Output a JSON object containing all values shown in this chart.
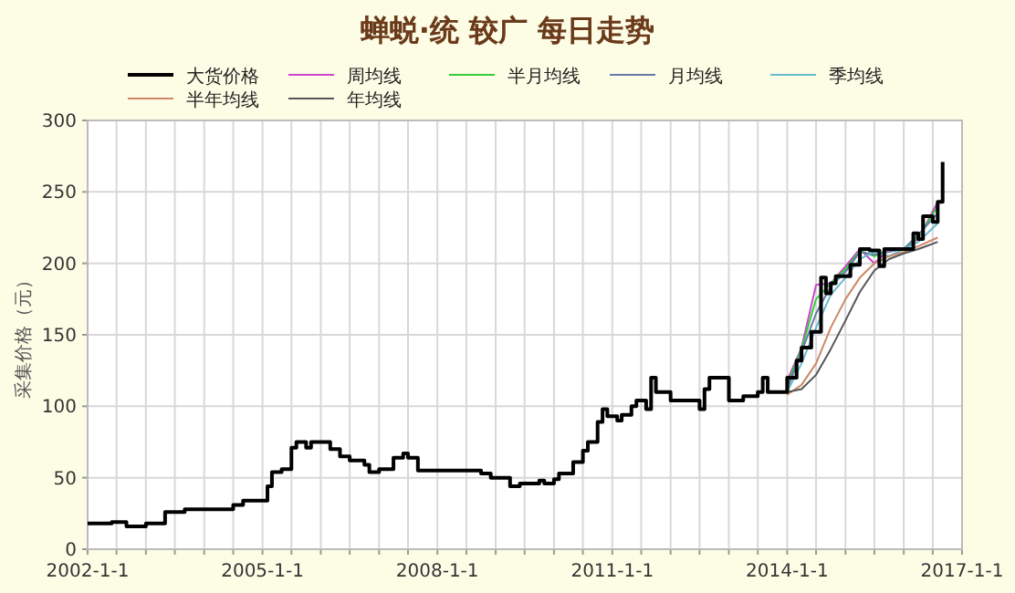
{
  "chart_data": {
    "type": "step",
    "title": "蝉蜕·统 较广 每日走势",
    "ylabel": "采集价格（元）",
    "legend": "top",
    "grid": true,
    "xlim": [
      "2002-01-01",
      "2017-01-01"
    ],
    "ylim": [
      0,
      300
    ],
    "yticks": [
      0,
      50,
      100,
      150,
      200,
      250,
      300
    ],
    "xticks": [
      {
        "value": "2002-01-01",
        "label": "2002-1-1"
      },
      {
        "value": "2002-07-01",
        "label": null
      },
      {
        "value": "2003-01-01",
        "label": null
      },
      {
        "value": "2003-07-01",
        "label": null
      },
      {
        "value": "2004-01-01",
        "label": null
      },
      {
        "value": "2004-07-01",
        "label": null
      },
      {
        "value": "2005-01-01",
        "label": "2005-1-1"
      },
      {
        "value": "2005-07-01",
        "label": null
      },
      {
        "value": "2006-01-01",
        "label": null
      },
      {
        "value": "2006-07-01",
        "label": null
      },
      {
        "value": "2007-01-01",
        "label": null
      },
      {
        "value": "2007-07-01",
        "label": null
      },
      {
        "value": "2008-01-01",
        "label": "2008-1-1"
      },
      {
        "value": "2008-07-01",
        "label": null
      },
      {
        "value": "2009-01-01",
        "label": null
      },
      {
        "value": "2009-07-01",
        "label": null
      },
      {
        "value": "2010-01-01",
        "label": null
      },
      {
        "value": "2010-07-01",
        "label": null
      },
      {
        "value": "2011-01-01",
        "label": "2011-1-1"
      },
      {
        "value": "2011-07-01",
        "label": null
      },
      {
        "value": "2012-01-01",
        "label": null
      },
      {
        "value": "2012-07-01",
        "label": null
      },
      {
        "value": "2013-01-01",
        "label": null
      },
      {
        "value": "2013-07-01",
        "label": null
      },
      {
        "value": "2014-01-01",
        "label": "2014-1-1"
      },
      {
        "value": "2014-07-01",
        "label": null
      },
      {
        "value": "2015-01-01",
        "label": null
      },
      {
        "value": "2015-07-01",
        "label": null
      },
      {
        "value": "2016-01-01",
        "label": null
      },
      {
        "value": "2016-07-01",
        "label": null
      },
      {
        "value": "2017-01-01",
        "label": "2017-1-1"
      }
    ],
    "series": [
      {
        "name": "大货价格",
        "color": "#000000",
        "x": [
          "2002-01",
          "2002-06",
          "2002-09",
          "2003-01",
          "2003-05",
          "2003-09",
          "2004-07",
          "2004-09",
          "2005-02",
          "2005-03",
          "2005-05",
          "2005-07",
          "2005-08",
          "2005-10",
          "2005-11",
          "2006-03",
          "2006-05",
          "2006-07",
          "2006-10",
          "2006-11",
          "2007-01",
          "2007-04",
          "2007-06",
          "2007-07",
          "2007-09",
          "2008-10",
          "2008-12",
          "2009-04",
          "2009-06",
          "2009-10",
          "2009-11",
          "2010-01",
          "2010-02",
          "2010-05",
          "2010-07",
          "2010-08",
          "2010-10",
          "2010-11",
          "2010-12",
          "2011-02",
          "2011-03",
          "2011-05",
          "2011-06",
          "2011-08",
          "2011-09",
          "2011-10",
          "2012-01",
          "2012-07",
          "2012-08",
          "2012-09",
          "2013-01",
          "2013-04",
          "2013-07",
          "2013-08",
          "2013-09",
          "2014-01",
          "2014-03",
          "2014-04",
          "2014-06",
          "2014-08",
          "2014-09",
          "2014-10",
          "2014-11",
          "2015-02",
          "2015-04",
          "2015-06",
          "2015-08",
          "2015-09",
          "2016-03",
          "2016-04",
          "2016-05",
          "2016-07",
          "2016-08",
          "2016-09"
        ],
        "values": [
          18,
          19,
          16,
          18,
          26,
          28,
          31,
          34,
          44,
          54,
          56,
          71,
          75,
          71,
          75,
          70,
          65,
          62,
          59,
          54,
          56,
          64,
          67,
          64,
          55,
          53,
          50,
          44,
          46,
          48,
          46,
          49,
          53,
          61,
          69,
          75,
          89,
          98,
          93,
          90,
          94,
          100,
          104,
          98,
          120,
          110,
          104,
          98,
          112,
          120,
          104,
          107,
          110,
          120,
          110,
          120,
          132,
          141,
          152,
          190,
          179,
          186,
          191,
          199,
          210,
          209,
          198,
          210,
          221,
          217,
          233,
          229,
          243,
          271
        ]
      },
      {
        "name": "周均线",
        "type": "line",
        "color": "#cc44cc",
        "x": [
          "2014-01",
          "2014-04",
          "2014-07",
          "2014-10",
          "2015-01",
          "2015-04",
          "2015-07",
          "2015-10",
          "2016-01",
          "2016-04",
          "2016-08"
        ],
        "values": [
          118,
          141,
          185,
          186,
          198,
          210,
          200,
          210,
          210,
          217,
          243
        ]
      },
      {
        "name": "半月均线",
        "type": "line",
        "color": "#33cc33",
        "x": [
          "2014-01",
          "2014-04",
          "2014-07",
          "2014-10",
          "2015-01",
          "2015-04",
          "2015-07",
          "2015-10",
          "2016-01",
          "2016-04",
          "2016-08"
        ],
        "values": [
          115,
          140,
          175,
          186,
          196,
          209,
          205,
          210,
          210,
          218,
          240
        ]
      },
      {
        "name": "月均线",
        "type": "line",
        "color": "#6677aa",
        "x": [
          "2014-01",
          "2014-04",
          "2014-07",
          "2014-10",
          "2015-01",
          "2015-04",
          "2015-07",
          "2015-10",
          "2016-01",
          "2016-04",
          "2016-08"
        ],
        "values": [
          112,
          138,
          165,
          184,
          194,
          208,
          206,
          208,
          210,
          220,
          235
        ]
      },
      {
        "name": "季均线",
        "type": "line",
        "color": "#66bbcc",
        "x": [
          "2014-01",
          "2014-04",
          "2014-07",
          "2014-10",
          "2015-01",
          "2015-04",
          "2015-07",
          "2015-10",
          "2016-01",
          "2016-04",
          "2016-08"
        ],
        "values": [
          110,
          130,
          155,
          178,
          190,
          203,
          208,
          205,
          210,
          215,
          228
        ]
      },
      {
        "name": "半年均线",
        "type": "line",
        "color": "#cc8866",
        "x": [
          "2014-01",
          "2014-04",
          "2014-07",
          "2014-10",
          "2015-01",
          "2015-04",
          "2015-07",
          "2015-10",
          "2016-01",
          "2016-04",
          "2016-08"
        ],
        "values": [
          108,
          115,
          130,
          155,
          175,
          190,
          200,
          205,
          208,
          212,
          218
        ]
      },
      {
        "name": "年均线",
        "type": "line",
        "color": "#555555",
        "x": [
          "2014-01",
          "2014-04",
          "2014-07",
          "2014-10",
          "2015-01",
          "2015-04",
          "2015-07",
          "2015-10",
          "2016-01",
          "2016-04",
          "2016-08"
        ],
        "values": [
          110,
          112,
          122,
          140,
          160,
          180,
          195,
          203,
          207,
          210,
          215
        ]
      }
    ]
  }
}
